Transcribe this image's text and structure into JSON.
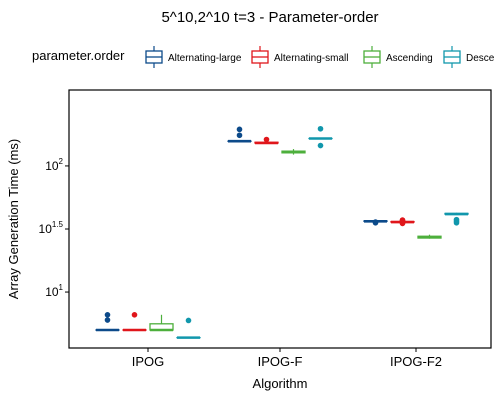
{
  "chart_data": {
    "type": "boxplot",
    "title": "5^10,2^10 t=3 - Parameter-order",
    "xlabel": "Algorithm",
    "ylabel": "Array Generation Time (ms)",
    "y_scale": "log10",
    "ylim": [
      3.6,
      400
    ],
    "y_ticks": [
      {
        "value": 10,
        "base": "10",
        "exp": "1"
      },
      {
        "value": 31.62,
        "base": "10",
        "exp": "1.5"
      },
      {
        "value": 100,
        "base": "10",
        "exp": "2"
      }
    ],
    "categories": [
      "IPOG",
      "IPOG-F",
      "IPOG-F2"
    ],
    "legend": {
      "title": "parameter.order",
      "position": "top",
      "entries": [
        "Alternating-large",
        "Alternating-small",
        "Ascending",
        "Desce"
      ]
    },
    "series": [
      {
        "name": "Alternating-large",
        "color": "#0c4a8a",
        "boxes": [
          {
            "category": "IPOG",
            "min": 5.0,
            "q1": 5.0,
            "median": 5.0,
            "q3": 5.0,
            "max": 5.0,
            "outliers": [
              6.0,
              6.6
            ]
          },
          {
            "category": "IPOG-F",
            "min": 157,
            "q1": 157,
            "median": 157,
            "q3": 157,
            "max": 159,
            "outliers": [
              175,
              195
            ]
          },
          {
            "category": "IPOG-F2",
            "min": 36.4,
            "q1": 36.4,
            "median": 36.4,
            "q3": 36.6,
            "max": 36.6,
            "outliers": [
              35.4,
              35.9
            ]
          }
        ]
      },
      {
        "name": "Alternating-small",
        "color": "#e0161b",
        "boxes": [
          {
            "category": "IPOG",
            "min": 5.0,
            "q1": 5.0,
            "median": 5.0,
            "q3": 5.0,
            "max": 5.0,
            "outliers": [
              6.6
            ]
          },
          {
            "category": "IPOG-F",
            "min": 152,
            "q1": 152,
            "median": 152,
            "q3": 154,
            "max": 154,
            "outliers": [
              162
            ]
          },
          {
            "category": "IPOG-F2",
            "min": 35.9,
            "q1": 35.9,
            "median": 35.9,
            "q3": 36.2,
            "max": 36.2,
            "outliers": [
              35.0,
              35.4,
              36.8,
              37.2
            ]
          }
        ]
      },
      {
        "name": "Ascending",
        "color": "#4daf3c",
        "boxes": [
          {
            "category": "IPOG",
            "min": 5.0,
            "q1": 5.0,
            "median": 5.0,
            "q3": 5.6,
            "max": 6.6,
            "outliers": []
          },
          {
            "category": "IPOG-F",
            "min": 123,
            "q1": 127,
            "median": 129,
            "q3": 131,
            "max": 136,
            "outliers": []
          },
          {
            "category": "IPOG-F2",
            "min": 26.5,
            "q1": 26.8,
            "median": 27.2,
            "q3": 27.7,
            "max": 28.5,
            "outliers": []
          }
        ]
      },
      {
        "name": "Desce",
        "color": "#1197ac",
        "boxes": [
          {
            "category": "IPOG",
            "min": 4.35,
            "q1": 4.35,
            "median": 4.35,
            "q3": 4.35,
            "max": 4.35,
            "outliers": [
              5.95
            ]
          },
          {
            "category": "IPOG-F",
            "min": 165,
            "q1": 165,
            "median": 165,
            "q3": 165,
            "max": 165,
            "outliers": [
              145,
              197
            ]
          },
          {
            "category": "IPOG-F2",
            "min": 41.5,
            "q1": 41.5,
            "median": 41.5,
            "q3": 42.0,
            "max": 42.5,
            "outliers": [
              35.4,
              36.5,
              37.5
            ]
          }
        ]
      }
    ]
  }
}
